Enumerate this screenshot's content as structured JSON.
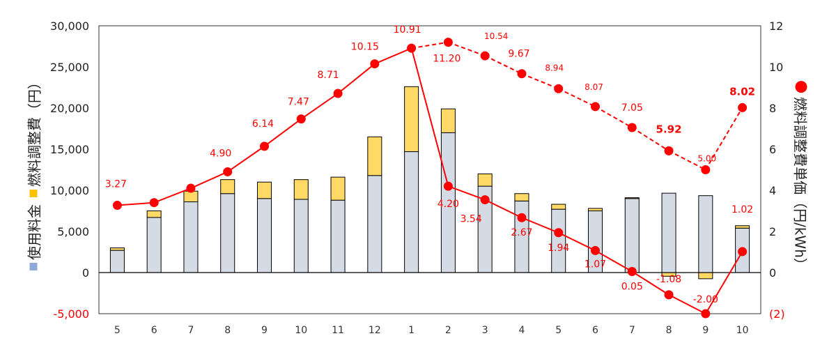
{
  "chart_data": {
    "type": "bar+line",
    "categories": [
      "5",
      "6",
      "7",
      "8",
      "9",
      "10",
      "11",
      "12",
      "1",
      "2",
      "3",
      "4",
      "5",
      "6",
      "7",
      "8",
      "9",
      "10"
    ],
    "bar_series": [
      {
        "name": "使用料金",
        "color": "#d5dbe5",
        "legend_color": "#8ea9db",
        "values": [
          2700,
          6700,
          8600,
          9600,
          9000,
          8900,
          8800,
          11800,
          14700,
          17000,
          10500,
          8700,
          7700,
          7500,
          9000,
          9650,
          9350,
          5400
        ]
      },
      {
        "name": "燃料調整費",
        "color": "#ffd966",
        "legend_color": "#ffc000",
        "values": [
          300,
          800,
          1300,
          1700,
          2000,
          2400,
          2800,
          4700,
          7900,
          2900,
          1500,
          900,
          600,
          300,
          100,
          -450,
          -750,
          300
        ]
      }
    ],
    "line_series": {
      "name": "燃料調整費単価",
      "color": "#ff0000",
      "dashed_segments": [
        "2-9"
      ],
      "curve_a": {
        "values": [
          3.27,
          3.4,
          4.1,
          4.9,
          6.14,
          7.47,
          8.71,
          10.15,
          10.91,
          null,
          null,
          null,
          null,
          null,
          null,
          null,
          null,
          null
        ]
      },
      "curve_b": {
        "values": [
          null,
          null,
          null,
          null,
          null,
          null,
          null,
          null,
          10.91,
          11.2,
          10.54,
          9.67,
          8.94,
          8.07,
          7.05,
          5.92,
          5.0,
          8.02
        ]
      },
      "curve_c": {
        "values": [
          null,
          null,
          null,
          null,
          null,
          null,
          null,
          null,
          10.91,
          4.2,
          3.54,
          2.67,
          1.94,
          1.07,
          0.05,
          -1.08,
          -2.0,
          1.02
        ]
      }
    },
    "data_labels": [
      {
        "cat": 0,
        "value": 3.27,
        "text": "3.27"
      },
      {
        "cat": 3,
        "value": 4.9,
        "text": "4.90"
      },
      {
        "cat": 4,
        "value": 6.14,
        "text": "6.14"
      },
      {
        "cat": 5,
        "value": 7.47,
        "text": "7.47"
      },
      {
        "cat": 6,
        "value": 8.71,
        "text": "8.71"
      },
      {
        "cat": 7,
        "value": 10.15,
        "text": "10.15"
      },
      {
        "cat": 8,
        "value": 10.91,
        "text": "10.91"
      },
      {
        "cat": 9,
        "value": 11.2,
        "text": "11.20"
      },
      {
        "cat": 10,
        "value": 10.54,
        "text": "10.54"
      },
      {
        "cat": 11,
        "value": 9.67,
        "text": "9.67"
      },
      {
        "cat": 12,
        "value": 8.94,
        "text": "8.94"
      },
      {
        "cat": 13,
        "value": 8.07,
        "text": "8.07"
      },
      {
        "cat": 14,
        "value": 7.05,
        "text": "7.05"
      },
      {
        "cat": 15,
        "value": 5.92,
        "text": "5.92"
      },
      {
        "cat": 16,
        "value": 5.0,
        "text": "5.00"
      },
      {
        "cat": 17,
        "value": 8.02,
        "text": "8.02"
      },
      {
        "cat": 9,
        "value": 4.2,
        "text": "4.20"
      },
      {
        "cat": 10,
        "value": 3.54,
        "text": "3.54"
      },
      {
        "cat": 11,
        "value": 2.67,
        "text": "2.67"
      },
      {
        "cat": 12,
        "value": 1.94,
        "text": "1.94"
      },
      {
        "cat": 13,
        "value": 1.07,
        "text": "1.07"
      },
      {
        "cat": 14,
        "value": 0.05,
        "text": "0.05"
      },
      {
        "cat": 15,
        "value": -1.08,
        "text": "-1.08"
      },
      {
        "cat": 16,
        "value": -2.0,
        "text": "-2.00"
      },
      {
        "cat": 17,
        "value": 1.02,
        "text": "1.02"
      }
    ],
    "y_left": {
      "ylim": [
        -5000,
        30000
      ],
      "ticks": [
        {
          "v": 30000,
          "t": "30,000"
        },
        {
          "v": 25000,
          "t": "25,000"
        },
        {
          "v": 20000,
          "t": "20,000"
        },
        {
          "v": 15000,
          "t": "15,000"
        },
        {
          "v": 10000,
          "t": "10,000"
        },
        {
          "v": 5000,
          "t": "5,000"
        },
        {
          "v": 0,
          "t": "0"
        },
        {
          "v": -5000,
          "t": "-5,000",
          "color": "#ff0000"
        }
      ]
    },
    "y_right": {
      "ylim": [
        -2,
        12
      ],
      "ticks": [
        {
          "v": 12,
          "t": "12"
        },
        {
          "v": 10,
          "t": "10"
        },
        {
          "v": 8,
          "t": "8"
        },
        {
          "v": 6,
          "t": "6"
        },
        {
          "v": 4,
          "t": "4"
        },
        {
          "v": 2,
          "t": "2"
        },
        {
          "v": 0,
          "t": "0"
        },
        {
          "v": -2,
          "t": "(2)",
          "color": "#ff0000"
        }
      ]
    },
    "left_axis_title": {
      "part1": "使用料金",
      "part2": "燃料調整費（円）"
    },
    "right_axis_title": "燃料調整費単価（円/kWh）",
    "grid": false,
    "legend": "embedded in axis titles"
  }
}
